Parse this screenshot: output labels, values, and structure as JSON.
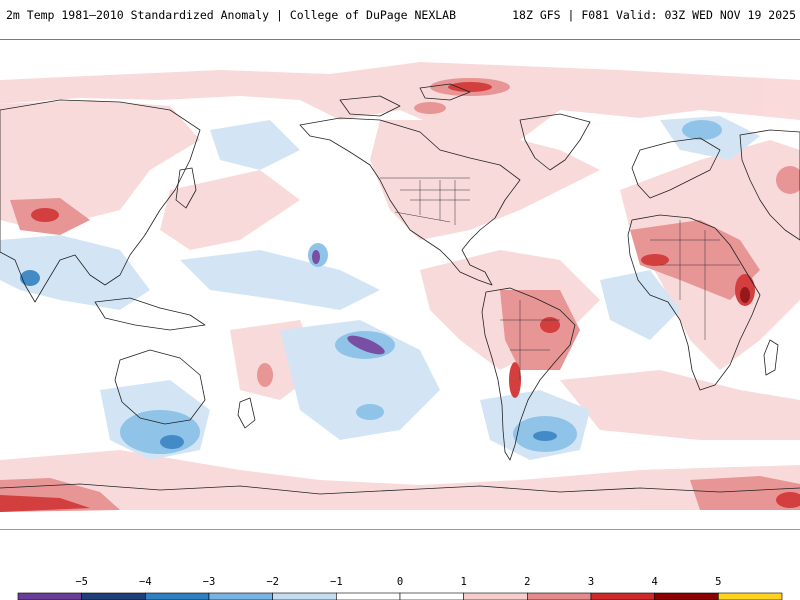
{
  "header": {
    "title_left": "2m Temp 1981–2010 Standardized Anomaly | College of DuPage NEXLAB",
    "title_right": "18Z GFS | F081 Valid: 03Z WED NOV 19 2025"
  },
  "colorbar": {
    "ticks": [
      "−5",
      "−4",
      "−3",
      "−2",
      "−1",
      "0",
      "1",
      "2",
      "3",
      "4",
      "5"
    ],
    "colors": [
      "#6a3d9a",
      "#1f3f7a",
      "#2f7fc1",
      "#78b4e2",
      "#c4ddf1",
      "#ffffff",
      "#ffffff",
      "#f6cccc",
      "#e58a8a",
      "#cf2a2a",
      "#8b0000",
      "#ffd21f"
    ]
  },
  "map": {
    "anomaly_colors": {
      "light_warm": "#f9d6d6",
      "warm": "#ef9a9a",
      "hot": "#d32f2f",
      "very_hot": "#8b0000",
      "light_cool": "#cfe3f4",
      "cool": "#85bde6",
      "cold": "#2f7fc1",
      "very_cold": "#6a3d9a"
    }
  }
}
